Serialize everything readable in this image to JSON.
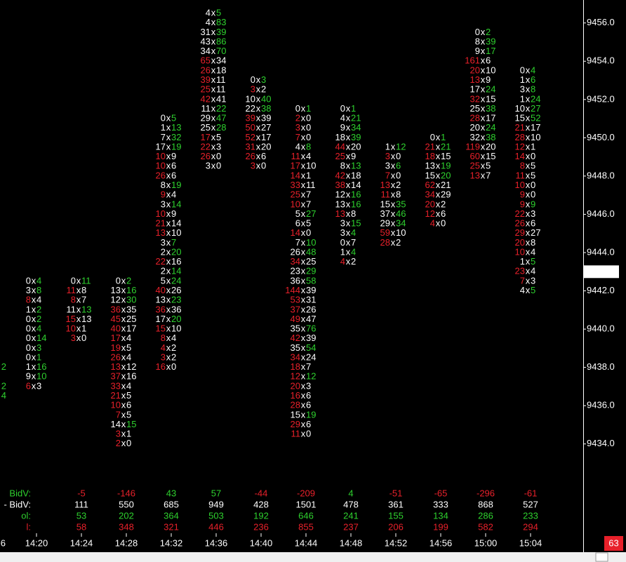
{
  "chart_data": {
    "type": "footprint",
    "ylim": [
      9457.2,
      9431.9
    ],
    "yticks": [
      {
        "value": 9456,
        "label": "9456.0"
      },
      {
        "value": 9454,
        "label": "9454.0"
      },
      {
        "value": 9452,
        "label": "9452.0"
      },
      {
        "value": 9450,
        "label": "9450.0"
      },
      {
        "value": 9448,
        "label": "9448.0"
      },
      {
        "value": 9446,
        "label": "9446.0"
      },
      {
        "value": 9444,
        "label": "9444.0"
      },
      {
        "value": 9442,
        "label": "9442.0"
      },
      {
        "value": 9440,
        "label": "9440.0"
      },
      {
        "value": 9438,
        "label": "9438.0"
      },
      {
        "value": 9436,
        "label": "9436.0"
      },
      {
        "value": 9434,
        "label": "9434.0"
      }
    ],
    "current_price": {
      "value": 9443,
      "label": "9443.0"
    },
    "tick_size": 0.5,
    "cell_separator": "x",
    "colors": {
      "bid": "#e8202a",
      "ask": "#2ed12e",
      "neutral": "#ffffff"
    },
    "summary_labels": [
      "BidV:",
      "- BidV:",
      "ol:",
      "l:"
    ],
    "summary_colors": [
      null,
      "#ffffff",
      "#2ed12e",
      "#e8202a"
    ],
    "partial_column": {
      "time": "6",
      "high": 9438,
      "asks": [
        2,
        null,
        2,
        4
      ]
    },
    "columns": [
      {
        "time": "14:20",
        "high": 9442.5,
        "bids": [
          0,
          3,
          8,
          1,
          0,
          0,
          0,
          0,
          0,
          1,
          9,
          6
        ],
        "asks": [
          4,
          8,
          4,
          2,
          2,
          4,
          14,
          3,
          1,
          16,
          10,
          3
        ],
        "bid_red": [
          2,
          11
        ],
        "ask_green": [
          0,
          1,
          3,
          4,
          5,
          6,
          7,
          8,
          9,
          10
        ],
        "summary": null
      },
      {
        "time": "14:24",
        "high": 9442.5,
        "bids": [
          0,
          11,
          8,
          11,
          15,
          10,
          3
        ],
        "asks": [
          11,
          8,
          7,
          13,
          13,
          1,
          0
        ],
        "bid_red": [
          1,
          2,
          4,
          5,
          6
        ],
        "ask_green": [
          0,
          3
        ],
        "summary": [
          -5,
          111,
          53,
          58
        ]
      },
      {
        "time": "14:28",
        "high": 9442.5,
        "bids": [
          0,
          13,
          12,
          36,
          45,
          40,
          17,
          19,
          26,
          13,
          37,
          33,
          21,
          10,
          7,
          14,
          3,
          2
        ],
        "asks": [
          2,
          16,
          30,
          35,
          25,
          17,
          4,
          5,
          4,
          12,
          16,
          4,
          5,
          6,
          5,
          15,
          1,
          0
        ],
        "bid_red": [
          3,
          4,
          5,
          6,
          7,
          8,
          9,
          10,
          11,
          12,
          13,
          14,
          16,
          17
        ],
        "ask_green": [
          0,
          1,
          2,
          15
        ],
        "summary": [
          -146,
          550,
          202,
          348
        ]
      },
      {
        "time": "14:32",
        "high": 9451,
        "bids": [
          0,
          1,
          7,
          17,
          10,
          10,
          26,
          8,
          9,
          3,
          10,
          21,
          13,
          3,
          2,
          22,
          2,
          5,
          40,
          13,
          36,
          17,
          15,
          8,
          4,
          3,
          16
        ],
        "asks": [
          5,
          13,
          32,
          19,
          9,
          6,
          6,
          19,
          4,
          14,
          9,
          14,
          10,
          7,
          20,
          16,
          14,
          24,
          26,
          23,
          36,
          20,
          10,
          4,
          2,
          2,
          0
        ],
        "bid_red": [
          4,
          5,
          6,
          8,
          10,
          11,
          12,
          15,
          18,
          20,
          22,
          23,
          24,
          25,
          26
        ],
        "ask_green": [
          0,
          1,
          2,
          3,
          7,
          9,
          13,
          14,
          16,
          17,
          19,
          21
        ],
        "summary": [
          43,
          685,
          364,
          321
        ]
      },
      {
        "time": "14:36",
        "high": 9456.5,
        "bids": [
          4,
          4,
          31,
          43,
          34,
          65,
          26,
          39,
          25,
          42,
          11,
          29,
          25,
          17,
          22,
          26,
          3
        ],
        "asks": [
          5,
          83,
          39,
          86,
          70,
          34,
          18,
          11,
          11,
          41,
          22,
          47,
          28,
          5,
          3,
          0,
          0
        ],
        "bid_red": [
          5,
          6,
          7,
          8,
          9,
          13,
          14,
          15
        ],
        "ask_green": [
          0,
          1,
          2,
          3,
          4,
          10,
          11,
          12
        ],
        "summary": [
          57,
          949,
          503,
          446
        ]
      },
      {
        "time": "14:40",
        "high": 9453,
        "bids": [
          0,
          3,
          10,
          22,
          39,
          50,
          52,
          31,
          26,
          3
        ],
        "asks": [
          3,
          2,
          40,
          38,
          39,
          27,
          17,
          20,
          6,
          0
        ],
        "bid_red": [
          1,
          4,
          5,
          6,
          7,
          8,
          9
        ],
        "ask_green": [
          0,
          2,
          3
        ],
        "summary": [
          -44,
          428,
          192,
          236
        ]
      },
      {
        "time": "14:44",
        "high": 9451.5,
        "bids": [
          0,
          2,
          3,
          7,
          4,
          11,
          17,
          14,
          33,
          25,
          10,
          5,
          6,
          14,
          7,
          26,
          34,
          23,
          36,
          144,
          53,
          37,
          49,
          35,
          42,
          35,
          34,
          18,
          12,
          20,
          16,
          28,
          15,
          29,
          11
        ],
        "asks": [
          1,
          0,
          0,
          0,
          8,
          4,
          10,
          1,
          11,
          7,
          7,
          27,
          5,
          0,
          10,
          48,
          25,
          29,
          58,
          39,
          31,
          26,
          47,
          76,
          39,
          54,
          24,
          7,
          12,
          3,
          6,
          6,
          19,
          6,
          0
        ],
        "bid_red": [
          1,
          2,
          3,
          5,
          6,
          7,
          8,
          9,
          10,
          13,
          16,
          19,
          20,
          21,
          22,
          24,
          26,
          27,
          28,
          29,
          30,
          31,
          33,
          34
        ],
        "ask_green": [
          0,
          4,
          11,
          14,
          15,
          17,
          18,
          23,
          25,
          28,
          32
        ],
        "summary": [
          -209,
          1501,
          646,
          855
        ]
      },
      {
        "time": "14:48",
        "high": 9451.5,
        "bids": [
          0,
          4,
          9,
          18,
          44,
          25,
          8,
          42,
          38,
          12,
          13,
          13,
          3,
          3,
          0,
          1,
          4
        ],
        "asks": [
          1,
          21,
          34,
          39,
          20,
          9,
          13,
          18,
          14,
          16,
          16,
          8,
          15,
          4,
          7,
          4,
          2
        ],
        "bid_red": [
          4,
          5,
          7,
          8,
          11,
          16
        ],
        "ask_green": [
          0,
          1,
          2,
          3,
          6,
          9,
          10,
          12,
          13,
          15
        ],
        "summary": [
          4,
          478,
          241,
          237
        ]
      },
      {
        "time": "14:52",
        "high": 9449.5,
        "bids": [
          1,
          3,
          3,
          7,
          13,
          11,
          15,
          37,
          29,
          59,
          28
        ],
        "asks": [
          12,
          0,
          6,
          0,
          2,
          8,
          35,
          46,
          34,
          10,
          2
        ],
        "bid_red": [
          1,
          3,
          4,
          5,
          9,
          10
        ],
        "ask_green": [
          0,
          2,
          6,
          7,
          8
        ],
        "summary": [
          -51,
          361,
          155,
          206
        ]
      },
      {
        "time": "14:56",
        "high": 9450,
        "bids": [
          0,
          21,
          18,
          13,
          15,
          62,
          34,
          20,
          12,
          4
        ],
        "asks": [
          1,
          21,
          15,
          19,
          20,
          21,
          29,
          2,
          6,
          0
        ],
        "bid_red": [
          1,
          2,
          5,
          6,
          7,
          8,
          9
        ],
        "ask_green": [
          0,
          1,
          3,
          4
        ],
        "summary": [
          -65,
          333,
          134,
          199
        ]
      },
      {
        "time": "15:00",
        "high": 9455.5,
        "bids": [
          0,
          8,
          9,
          161,
          20,
          13,
          17,
          32,
          25,
          28,
          20,
          32,
          119,
          60,
          25,
          13
        ],
        "asks": [
          2,
          39,
          17,
          6,
          10,
          9,
          24,
          15,
          38,
          17,
          24,
          38,
          20,
          15,
          5,
          7
        ],
        "bid_red": [
          3,
          4,
          5,
          7,
          9,
          12,
          13,
          14,
          15
        ],
        "ask_green": [
          0,
          1,
          2,
          6,
          8,
          10,
          11
        ],
        "summary": [
          -296,
          868,
          286,
          582
        ]
      },
      {
        "time": "15:04",
        "high": 9453.5,
        "bids": [
          0,
          1,
          3,
          1,
          10,
          15,
          21,
          28,
          12,
          14,
          8,
          11,
          10,
          9,
          9,
          22,
          26,
          29,
          20,
          10,
          1,
          23,
          7,
          4
        ],
        "asks": [
          4,
          6,
          8,
          24,
          27,
          52,
          17,
          10,
          1,
          0,
          5,
          5,
          0,
          0,
          9,
          3,
          6,
          27,
          8,
          4,
          5,
          4,
          3,
          5
        ],
        "bid_red": [
          6,
          7,
          8,
          9,
          10,
          11,
          12,
          13,
          14,
          15,
          16,
          17,
          18,
          19,
          21,
          22
        ],
        "ask_green": [
          0,
          1,
          2,
          3,
          4,
          5,
          14,
          20,
          23
        ],
        "summary": [
          -61,
          527,
          233,
          294
        ]
      }
    ],
    "badge": "63"
  }
}
